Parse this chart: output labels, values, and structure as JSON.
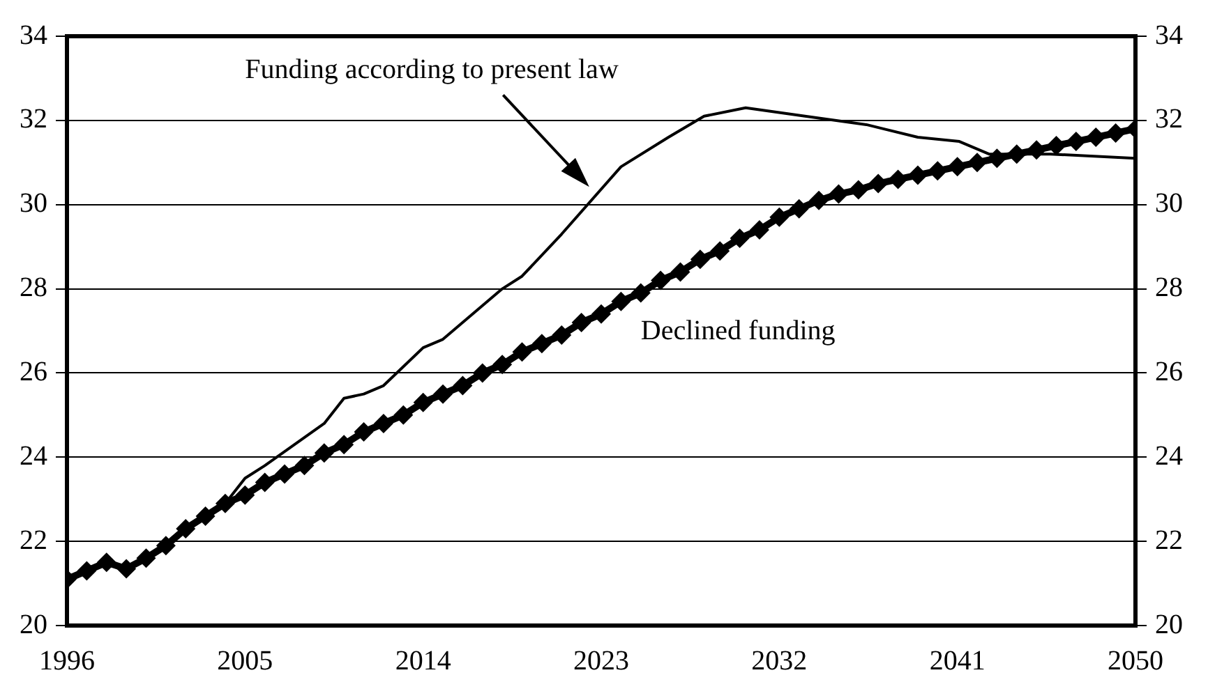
{
  "chart_data": {
    "type": "line",
    "xlim": [
      1996,
      2050
    ],
    "xticks": [
      1996,
      2005,
      2014,
      2023,
      2032,
      2041,
      2050
    ],
    "ylim": [
      20,
      34
    ],
    "yticks": [
      20,
      22,
      24,
      26,
      28,
      30,
      32,
      34
    ],
    "y2lim": [
      20,
      34
    ],
    "y2ticks": [
      20,
      22,
      24,
      26,
      28,
      30,
      32,
      34
    ],
    "grid": "y",
    "legend": false,
    "line_style": "solid",
    "series": [
      {
        "name": "Funding according to present law",
        "color": "#000000",
        "marker": "none",
        "x": [
          2003,
          2004,
          2005,
          2006,
          2009,
          2010,
          2011,
          2012,
          2014,
          2015,
          2018,
          2019,
          2021,
          2024,
          2026.4,
          2028.2,
          2030.3,
          2033.3,
          2036.4,
          2039,
          2041.1,
          2042.6,
          2045.7,
          2050
        ],
        "values": [
          22.6,
          22.9,
          23.5,
          23.8,
          24.8,
          25.4,
          25.5,
          25.7,
          26.6,
          26.8,
          28.0,
          28.3,
          29.3,
          30.9,
          31.6,
          32.1,
          32.3,
          32.1,
          31.9,
          31.6,
          31.5,
          31.2,
          31.2,
          31.1
        ]
      },
      {
        "name": "Declined funding",
        "color": "#000000",
        "marker": "diamond",
        "x": [
          1996,
          1997,
          1998,
          1999,
          2000,
          2001,
          2002,
          2003,
          2004,
          2005,
          2006,
          2007,
          2008,
          2009,
          2010,
          2011,
          2012,
          2013,
          2014,
          2015,
          2016,
          2017,
          2018,
          2019,
          2020,
          2021,
          2022,
          2023,
          2024,
          2025,
          2026,
          2027,
          2028,
          2029,
          2030,
          2031,
          2032,
          2033,
          2034,
          2035,
          2036,
          2037,
          2038,
          2039,
          2040,
          2041,
          2042,
          2043,
          2044,
          2045,
          2046,
          2047,
          2048,
          2049,
          2050
        ],
        "values": [
          21.1,
          21.3,
          21.5,
          21.35,
          21.6,
          21.9,
          22.3,
          22.6,
          22.9,
          23.1,
          23.4,
          23.6,
          23.8,
          24.1,
          24.3,
          24.6,
          24.8,
          25.0,
          25.3,
          25.5,
          25.7,
          26.0,
          26.2,
          26.5,
          26.7,
          26.9,
          27.2,
          27.4,
          27.7,
          27.9,
          28.2,
          28.4,
          28.7,
          28.9,
          29.2,
          29.4,
          29.7,
          29.9,
          30.1,
          30.25,
          30.35,
          30.5,
          30.6,
          30.7,
          30.8,
          30.9,
          31.0,
          31.1,
          31.2,
          31.3,
          31.4,
          31.5,
          31.6,
          31.7,
          31.8
        ]
      }
    ]
  }
}
